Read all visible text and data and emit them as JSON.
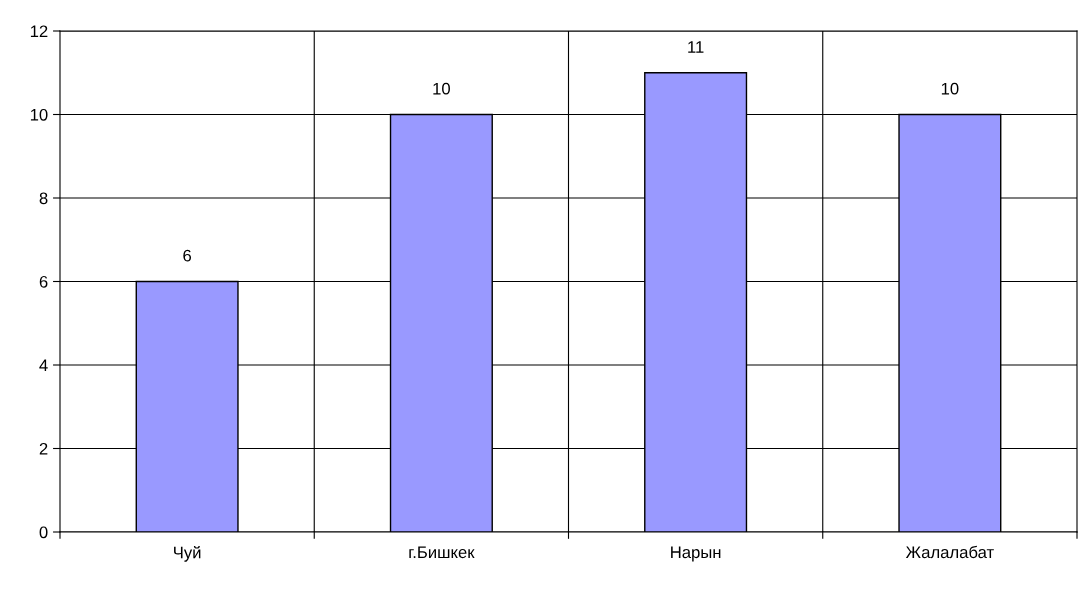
{
  "chart_data": {
    "type": "bar",
    "categories": [
      "Чуй",
      "г.Бишкек",
      "Нарын",
      "Жалалабат"
    ],
    "values": [
      6,
      10,
      11,
      10
    ],
    "color": "#9999ff",
    "ylim": [
      0,
      12
    ],
    "yticks": [
      0,
      2,
      4,
      6,
      8,
      10,
      12
    ],
    "grid": true,
    "data_labels": true
  }
}
